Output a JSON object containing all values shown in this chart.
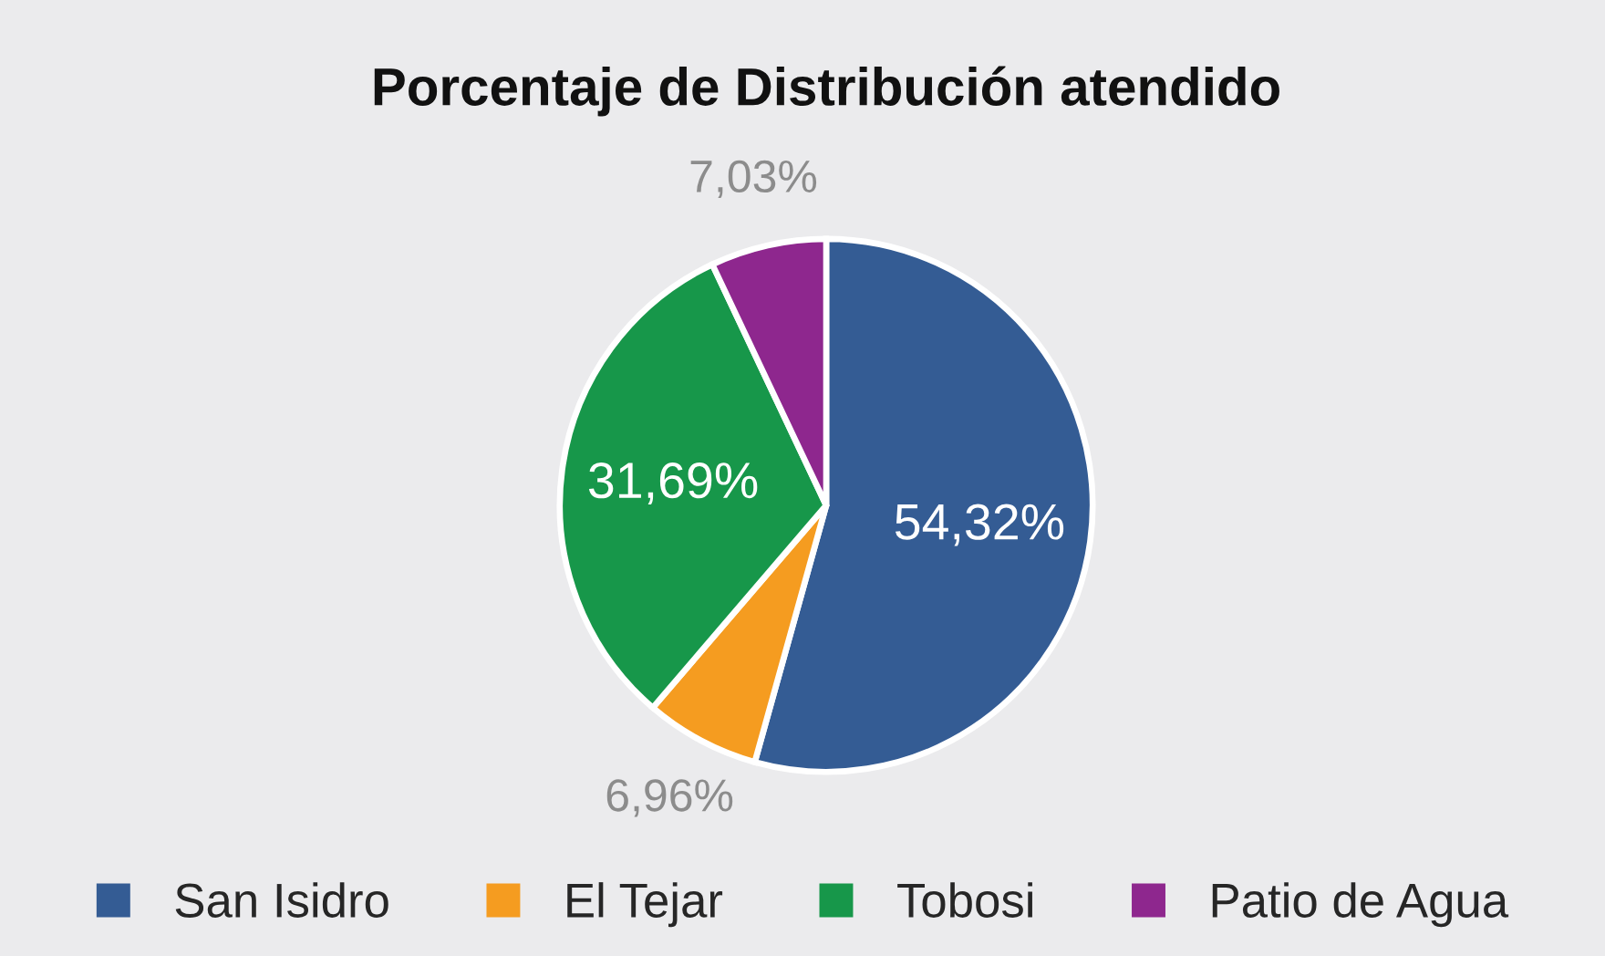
{
  "chart_data": {
    "type": "pie",
    "title": "Porcentaje de Distribución atendido",
    "categories": [
      "San Isidro",
      "El Tejar",
      "Tobosi",
      "Patio de Agua"
    ],
    "values": [
      54.32,
      6.96,
      31.69,
      7.03
    ],
    "colors": [
      "#345c94",
      "#f59c20",
      "#17974a",
      "#8e278e"
    ],
    "value_labels": [
      "54,32%",
      "6,96%",
      "31,69%",
      "7,03%"
    ],
    "legend": "bottom"
  }
}
